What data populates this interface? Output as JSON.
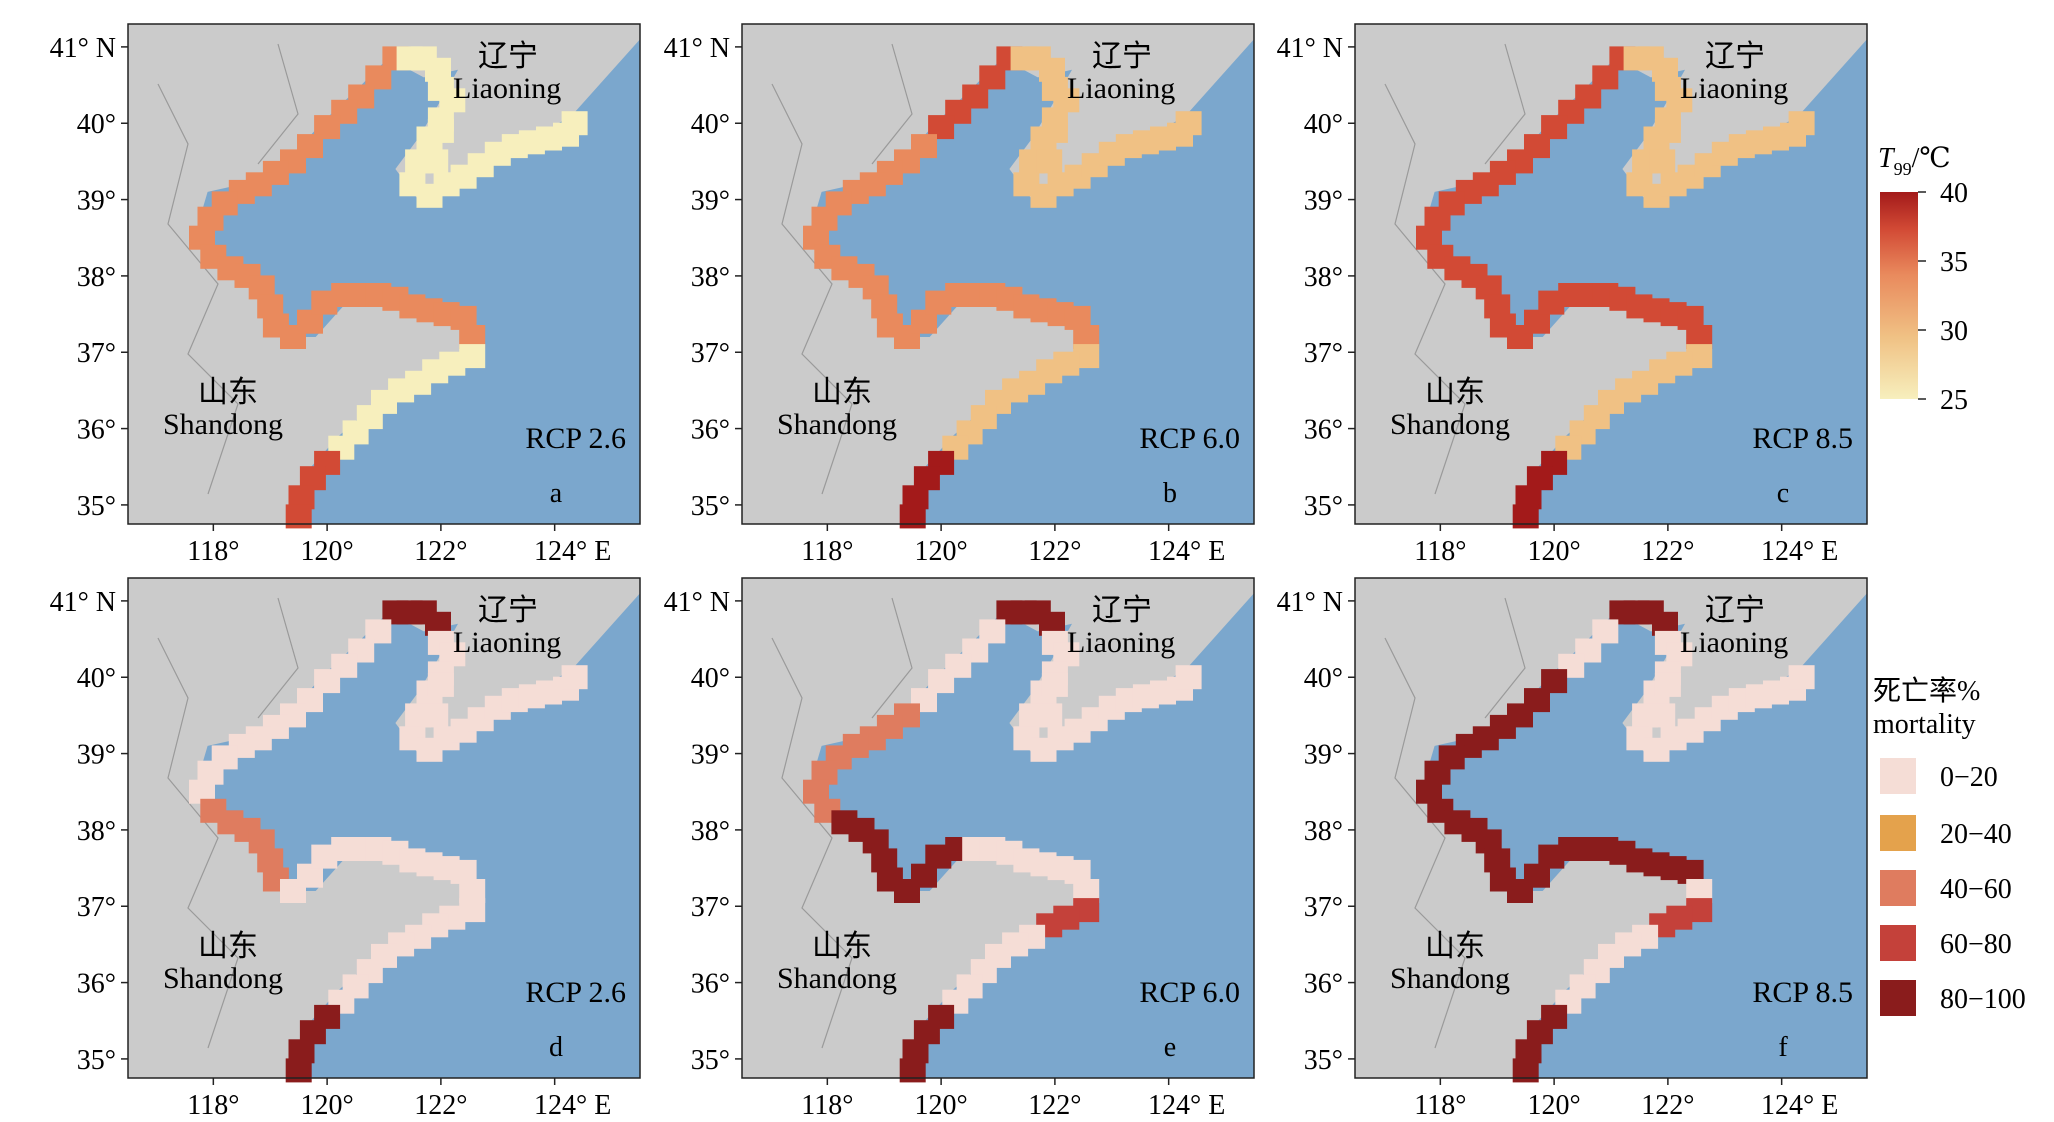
{
  "panels": [
    {
      "id": "a",
      "scenario": "RCP 2.6",
      "type": "temperature"
    },
    {
      "id": "b",
      "scenario": "RCP 6.0",
      "type": "temperature"
    },
    {
      "id": "c",
      "scenario": "RCP 8.5",
      "type": "temperature"
    },
    {
      "id": "d",
      "scenario": "RCP 2.6",
      "type": "mortality"
    },
    {
      "id": "e",
      "scenario": "RCP 6.0",
      "type": "mortality"
    },
    {
      "id": "f",
      "scenario": "RCP 8.5",
      "type": "mortality"
    }
  ],
  "map_labels": {
    "liaoning_cn": "辽宁",
    "liaoning_en": "Liaoning",
    "shandong_cn": "山东",
    "shandong_en": "Shandong"
  },
  "lat_ticks": [
    "41° N",
    "40°",
    "39°",
    "38°",
    "37°",
    "36°",
    "35°"
  ],
  "lon_ticks": [
    "118°",
    "120°",
    "122°",
    "124° E"
  ],
  "temperature_legend": {
    "title_var": "T",
    "title_sub": "99",
    "title_unit": "/℃",
    "ticks": [
      "40",
      "35",
      "30",
      "25"
    ],
    "range": [
      25,
      40
    ],
    "colors": [
      "#f7efbd",
      "#f0c184",
      "#e98a5d",
      "#d24a35",
      "#a31a1a"
    ]
  },
  "mortality_legend": {
    "title_cn": "死亡率%",
    "title_en": "mortality",
    "classes": [
      {
        "label": "0−20",
        "color": "#f5ddd6"
      },
      {
        "label": "20−40",
        "color": "#e4a24c"
      },
      {
        "label": "40−60",
        "color": "#df7c5f"
      },
      {
        "label": "60−80",
        "color": "#c4413a"
      },
      {
        "label": "80−100",
        "color": "#8a1c1c"
      }
    ]
  },
  "colors": {
    "sea": "#7ba7cd",
    "land": "#cbcbcb",
    "border": "#9a9a9a"
  }
}
